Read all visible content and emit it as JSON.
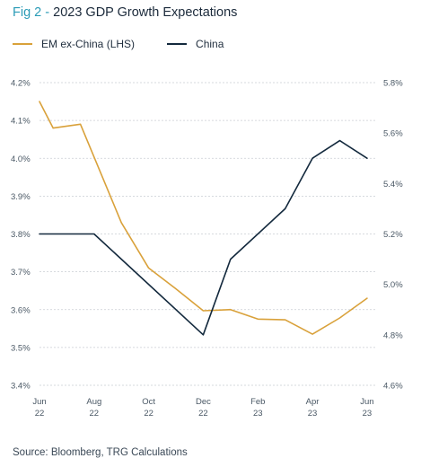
{
  "header": {
    "prefix": "Fig 2 - ",
    "title": "2023 GDP Growth Expectations"
  },
  "source": "Source: Bloomberg, TRG Calculations",
  "colors": {
    "em": "#d9a13a",
    "china": "#13293d",
    "grid": "#c9ced3"
  },
  "chart_data": {
    "type": "line",
    "title": "2023 GDP Growth Expectations",
    "x_ticks": [
      {
        "month": 0,
        "line1": "Jun",
        "line2": "22"
      },
      {
        "month": 2,
        "line1": "Aug",
        "line2": "22"
      },
      {
        "month": 4,
        "line1": "Oct",
        "line2": "22"
      },
      {
        "month": 6,
        "line1": "Dec",
        "line2": "22"
      },
      {
        "month": 8,
        "line1": "Feb",
        "line2": "23"
      },
      {
        "month": 10,
        "line1": "Apr",
        "line2": "23"
      },
      {
        "month": 12,
        "line1": "Jun",
        "line2": "23"
      }
    ],
    "left_axis": {
      "ylim": [
        3.4,
        4.2
      ],
      "ticks": [
        "3.4%",
        "3.5%",
        "3.6%",
        "3.7%",
        "3.8%",
        "3.9%",
        "4.0%",
        "4.1%",
        "4.2%"
      ],
      "tick_values": [
        3.4,
        3.5,
        3.6,
        3.7,
        3.8,
        3.9,
        4.0,
        4.1,
        4.2
      ]
    },
    "right_axis": {
      "ylim": [
        4.6,
        5.8
      ],
      "ticks": [
        "4.6%",
        "4.8%",
        "5.0%",
        "5.2%",
        "5.4%",
        "5.6%",
        "5.8%"
      ],
      "tick_values": [
        4.6,
        4.8,
        5.0,
        5.2,
        5.4,
        5.6,
        5.8
      ]
    },
    "grid": "horizontal",
    "legend_position": "top-left",
    "series": [
      {
        "name": "EM ex-China (LHS)",
        "axis": "left",
        "color": "#d9a13a",
        "points": [
          {
            "x": 0,
            "y": 4.15
          },
          {
            "x": 0.5,
            "y": 4.08
          },
          {
            "x": 1.5,
            "y": 4.09
          },
          {
            "x": 3,
            "y": 3.83
          },
          {
            "x": 4,
            "y": 3.71
          },
          {
            "x": 5,
            "y": 3.655
          },
          {
            "x": 6,
            "y": 3.597
          },
          {
            "x": 7,
            "y": 3.6
          },
          {
            "x": 8,
            "y": 3.575
          },
          {
            "x": 9,
            "y": 3.573
          },
          {
            "x": 10,
            "y": 3.535
          },
          {
            "x": 11,
            "y": 3.578
          },
          {
            "x": 12,
            "y": 3.63
          }
        ]
      },
      {
        "name": "China",
        "axis": "right",
        "color": "#13293d",
        "points": [
          {
            "x": 0,
            "y": 5.2
          },
          {
            "x": 2,
            "y": 5.2
          },
          {
            "x": 6,
            "y": 4.8
          },
          {
            "x": 7,
            "y": 5.1
          },
          {
            "x": 9,
            "y": 5.3
          },
          {
            "x": 10,
            "y": 5.5
          },
          {
            "x": 11,
            "y": 5.57
          },
          {
            "x": 12,
            "y": 5.5
          }
        ]
      }
    ]
  }
}
